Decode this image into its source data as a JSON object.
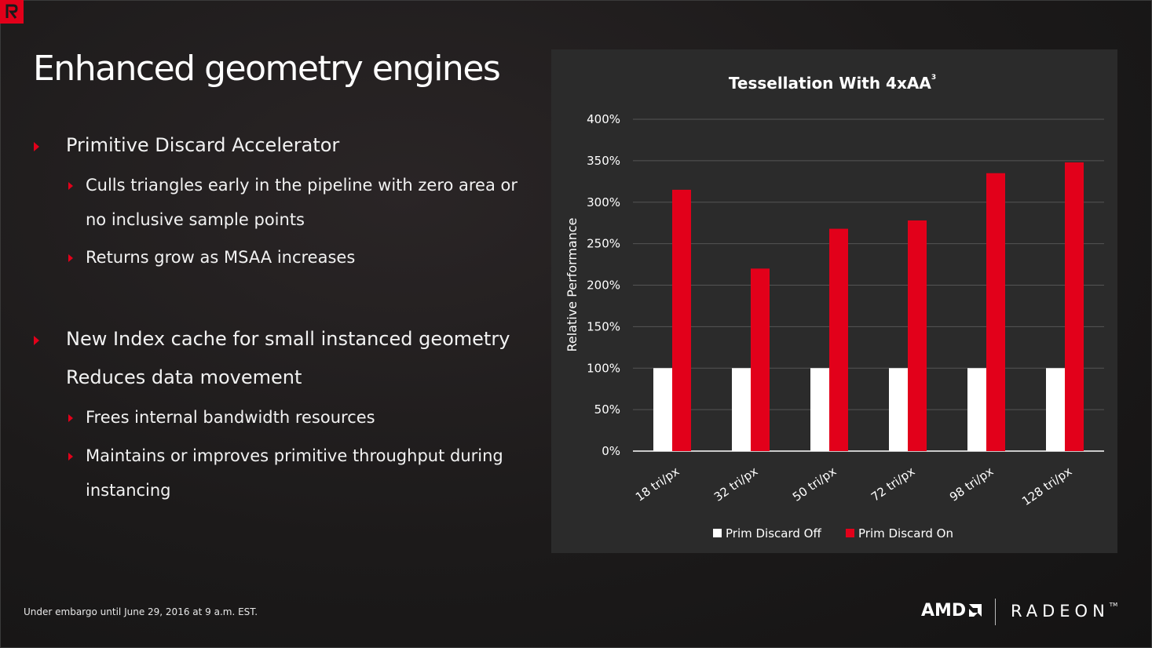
{
  "slide": {
    "title": "Enhanced geometry engines",
    "logo_letter": "R",
    "accent_color": "#e2001a"
  },
  "bullets": [
    {
      "level": 1,
      "text": "Primitive Discard Accelerator"
    },
    {
      "level": 2,
      "text": "Culls triangles early in the pipeline with zero area or"
    },
    {
      "level": 2,
      "text": "no inclusive sample points",
      "continuation": true
    },
    {
      "level": 2,
      "text": "Returns grow as MSAA increases"
    },
    {
      "level": 1,
      "text": "New Index cache for small instanced geometry"
    },
    {
      "level": 1,
      "text": "Reduces data movement",
      "continuation": true
    },
    {
      "level": 2,
      "text": "Frees internal bandwidth resources"
    },
    {
      "level": 2,
      "text": "Maintains or  improves primitive throughput during"
    },
    {
      "level": 2,
      "text": "instancing",
      "continuation": true
    }
  ],
  "chart_data": {
    "type": "bar",
    "title": "Tessellation With 4xAA",
    "title_superscript": "3",
    "xlabel": "",
    "ylabel": "Relative Performance",
    "ylim": [
      0,
      400
    ],
    "yticks": [
      0,
      50,
      100,
      150,
      200,
      250,
      300,
      350,
      400
    ],
    "ytick_labels": [
      "0%",
      "50%",
      "100%",
      "150%",
      "200%",
      "250%",
      "300%",
      "350%",
      "400%"
    ],
    "categories": [
      "18 tri/px",
      "32 tri/px",
      "50 tri/px",
      "72 tri/px",
      "98 tri/px",
      "128 tri/px"
    ],
    "series": [
      {
        "name": "Prim Discard Off",
        "color": "#ffffff",
        "values": [
          100,
          100,
          100,
          100,
          100,
          100
        ]
      },
      {
        "name": "Prim Discard On",
        "color": "#e2001a",
        "values": [
          315,
          220,
          268,
          278,
          335,
          348
        ]
      }
    ],
    "grid": true,
    "legend": "bottom"
  },
  "footer": {
    "embargo": "Under embargo until June 29, 2016 at  9 a.m. EST.",
    "brand_amd": "AMD",
    "brand_radeon": "RADEON",
    "brand_tm": "TM"
  }
}
